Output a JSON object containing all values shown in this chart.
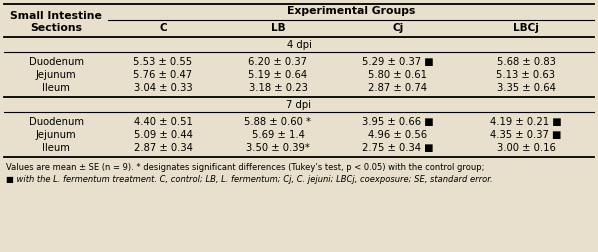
{
  "col_header_main": "Experimental Groups",
  "col_header_sub": [
    "C",
    "LB",
    "Cj",
    "LBCj"
  ],
  "rows_4dpi": [
    [
      "Duodenum",
      "5.53 ± 0.55",
      "6.20 ± 0.37",
      "5.29 ± 0.37 ■",
      "5.68 ± 0.83"
    ],
    [
      "Jejunum",
      "5.76 ± 0.47",
      "5.19 ± 0.64",
      "5.80 ± 0.61",
      "5.13 ± 0.63"
    ],
    [
      "Ileum",
      "3.04 ± 0.33",
      "3.18 ± 0.23",
      "2.87 ± 0.74",
      "3.35 ± 0.64"
    ]
  ],
  "rows_7dpi": [
    [
      "Duodenum",
      "4.40 ± 0.51",
      "5.88 ± 0.60 *",
      "3.95 ± 0.66 ■",
      "4.19 ± 0.21 ■"
    ],
    [
      "Jejunum",
      "5.09 ± 0.44",
      "5.69 ± 1.4",
      "4.96 ± 0.56",
      "4.35 ± 0.37 ■"
    ],
    [
      "Ileum",
      "2.87 ± 0.34",
      "3.50 ± 0.39*",
      "2.75 ± 0.34 ■",
      "3.00 ± 0.16"
    ]
  ],
  "footnote1": "Values are mean ± SE (n = 9). * designates significant differences (Tukey’s test, p < 0.05) with the control group;",
  "footnote2": "■ with the L. fermentum treatment. C, control; LB, L. fermentum; Cj, C. jejuni; LBCj, coexposure; SE, standard error.",
  "bg_color": "#e8e0cc",
  "line_color": "#000000",
  "text_color": "#000000"
}
